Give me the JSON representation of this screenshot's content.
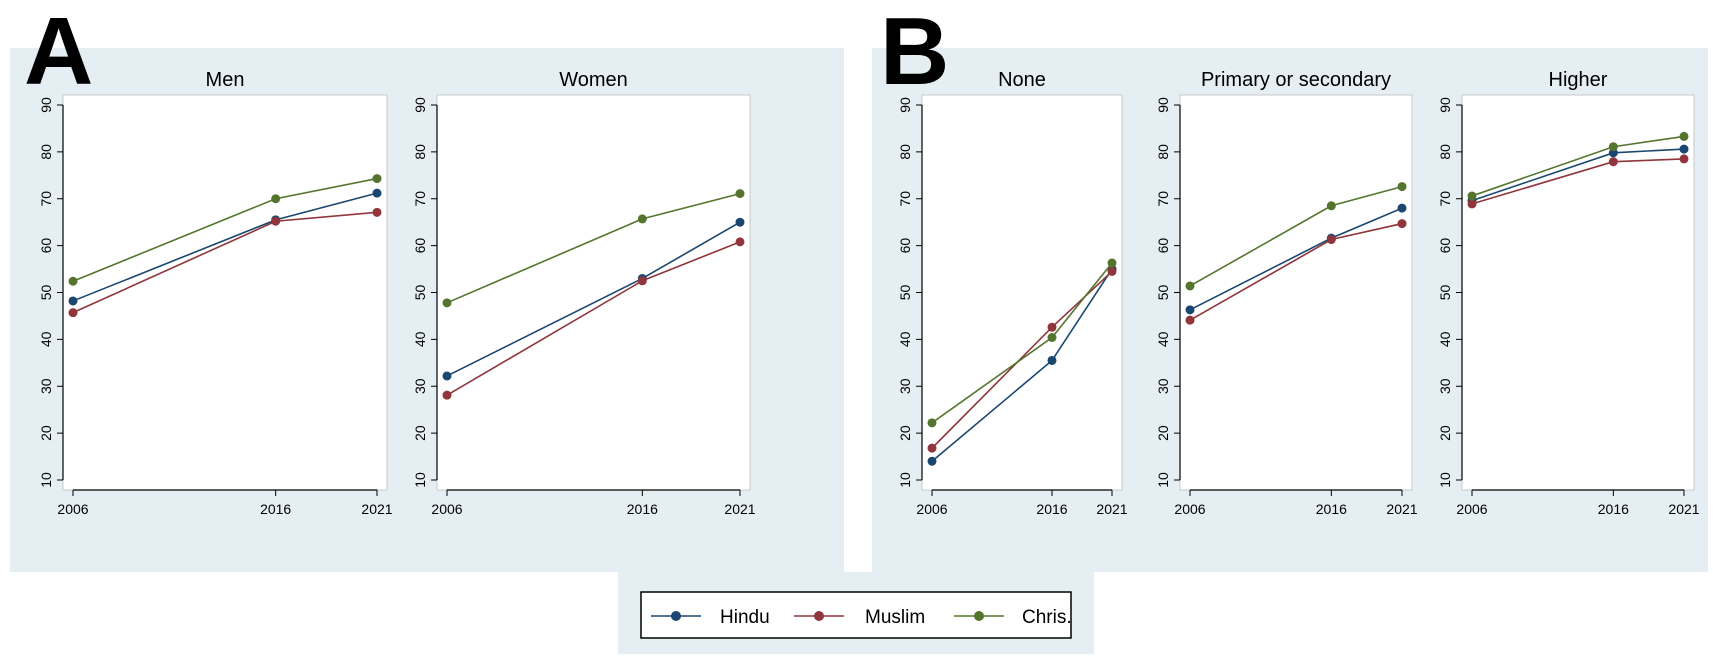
{
  "figure": {
    "panel_labels": [
      "A",
      "B"
    ],
    "background_color": "#e5eef2",
    "legend": {
      "items": [
        {
          "label": "Hindu",
          "color": "#1a476f"
        },
        {
          "label": "Muslim",
          "color": "#90353b"
        },
        {
          "label": "Chris.",
          "color": "#55752f"
        }
      ],
      "placement": "bottom-center"
    }
  },
  "chart_data": [
    {
      "panel": "A",
      "type": "line",
      "title": "Men",
      "x": [
        2006,
        2016,
        2021
      ],
      "x_tick_labels": [
        "2006",
        "2016",
        "2021"
      ],
      "ylim": [
        10,
        90
      ],
      "y_ticks": [
        10,
        20,
        30,
        40,
        50,
        60,
        70,
        80,
        90
      ],
      "grid": false,
      "series": [
        {
          "name": "Hindu",
          "color": "#1a476f",
          "values": [
            48.2,
            65.5,
            71.2
          ]
        },
        {
          "name": "Muslim",
          "color": "#90353b",
          "values": [
            45.7,
            65.2,
            67.1
          ]
        },
        {
          "name": "Chris.",
          "color": "#55752f",
          "values": [
            52.4,
            70.0,
            74.3
          ]
        }
      ]
    },
    {
      "panel": "A",
      "type": "line",
      "title": "Women",
      "x": [
        2006,
        2016,
        2021
      ],
      "x_tick_labels": [
        "2006",
        "2016",
        "2021"
      ],
      "ylim": [
        10,
        90
      ],
      "y_ticks": [
        10,
        20,
        30,
        40,
        50,
        60,
        70,
        80,
        90
      ],
      "grid": false,
      "series": [
        {
          "name": "Hindu",
          "color": "#1a476f",
          "values": [
            32.2,
            53.0,
            65.0
          ]
        },
        {
          "name": "Muslim",
          "color": "#90353b",
          "values": [
            28.1,
            52.5,
            60.8
          ]
        },
        {
          "name": "Chris.",
          "color": "#55752f",
          "values": [
            47.8,
            65.7,
            71.1
          ]
        }
      ]
    },
    {
      "panel": "B",
      "type": "line",
      "title": "None",
      "x": [
        2006,
        2016,
        2021
      ],
      "x_tick_labels": [
        "2006",
        "2016",
        "2021"
      ],
      "ylim": [
        10,
        90
      ],
      "y_ticks": [
        10,
        20,
        30,
        40,
        50,
        60,
        70,
        80,
        90
      ],
      "grid": false,
      "series": [
        {
          "name": "Hindu",
          "color": "#1a476f",
          "values": [
            14.0,
            35.5,
            55.0
          ]
        },
        {
          "name": "Muslim",
          "color": "#90353b",
          "values": [
            16.8,
            42.6,
            54.5
          ]
        },
        {
          "name": "Chris.",
          "color": "#55752f",
          "values": [
            22.2,
            40.4,
            56.3
          ]
        }
      ]
    },
    {
      "panel": "B",
      "type": "line",
      "title": "Primary or secondary",
      "x": [
        2006,
        2016,
        2021
      ],
      "x_tick_labels": [
        "2006",
        "2016",
        "2021"
      ],
      "ylim": [
        10,
        90
      ],
      "y_ticks": [
        10,
        20,
        30,
        40,
        50,
        60,
        70,
        80,
        90
      ],
      "grid": false,
      "series": [
        {
          "name": "Hindu",
          "color": "#1a476f",
          "values": [
            46.3,
            61.6,
            68.0
          ]
        },
        {
          "name": "Muslim",
          "color": "#90353b",
          "values": [
            44.1,
            61.3,
            64.7
          ]
        },
        {
          "name": "Chris.",
          "color": "#55752f",
          "values": [
            51.4,
            68.5,
            72.6
          ]
        }
      ]
    },
    {
      "panel": "B",
      "type": "line",
      "title": "Higher",
      "x": [
        2006,
        2016,
        2021
      ],
      "x_tick_labels": [
        "2006",
        "2016",
        "2021"
      ],
      "ylim": [
        10,
        90
      ],
      "y_ticks": [
        10,
        20,
        30,
        40,
        50,
        60,
        70,
        80,
        90
      ],
      "grid": false,
      "series": [
        {
          "name": "Hindu",
          "color": "#1a476f",
          "values": [
            69.6,
            79.8,
            80.6
          ]
        },
        {
          "name": "Muslim",
          "color": "#90353b",
          "values": [
            68.9,
            77.9,
            78.5
          ]
        },
        {
          "name": "Chris.",
          "color": "#55752f",
          "values": [
            70.6,
            81.1,
            83.3
          ]
        }
      ]
    }
  ]
}
